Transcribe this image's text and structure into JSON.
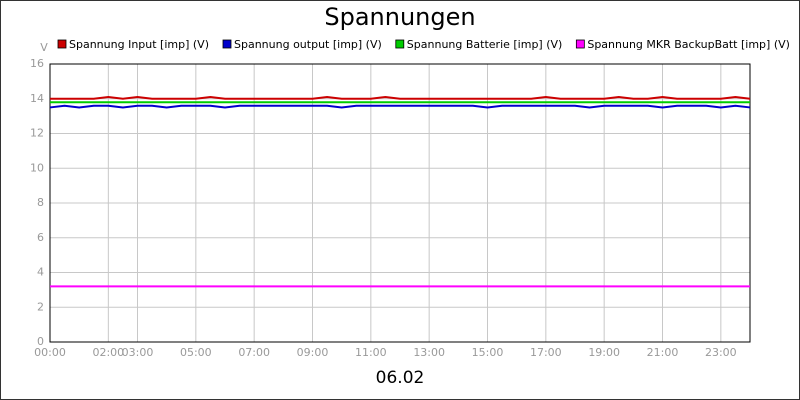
{
  "chart_data": {
    "type": "line",
    "title": "Spannungen",
    "xlabel": "06.02",
    "ylabel": "V",
    "x": [
      0,
      0.5,
      1,
      1.5,
      2,
      2.5,
      3,
      3.5,
      4,
      4.5,
      5,
      5.5,
      6,
      6.5,
      7,
      7.5,
      8,
      8.5,
      9,
      9.5,
      10,
      10.5,
      11,
      11.5,
      12,
      12.5,
      13,
      13.5,
      14,
      14.5,
      15,
      15.5,
      16,
      16.5,
      17,
      17.5,
      18,
      18.5,
      19,
      19.5,
      20,
      20.5,
      21,
      21.5,
      22,
      22.5,
      23,
      23.5,
      24
    ],
    "xlim": [
      0,
      24
    ],
    "xticks": [
      {
        "value": 0,
        "label": "00:00"
      },
      {
        "value": 2,
        "label": "02:00"
      },
      {
        "value": 3,
        "label": "03:00"
      },
      {
        "value": 5,
        "label": "05:00"
      },
      {
        "value": 7,
        "label": "07:00"
      },
      {
        "value": 9,
        "label": "09:00"
      },
      {
        "value": 11,
        "label": "11:00"
      },
      {
        "value": 13,
        "label": "13:00"
      },
      {
        "value": 15,
        "label": "15:00"
      },
      {
        "value": 17,
        "label": "17:00"
      },
      {
        "value": 19,
        "label": "19:00"
      },
      {
        "value": 21,
        "label": "21:00"
      },
      {
        "value": 23,
        "label": "23:00"
      }
    ],
    "ylim": [
      0,
      16
    ],
    "yticks": [
      0,
      2,
      4,
      6,
      8,
      10,
      12,
      14,
      16
    ],
    "grid": true,
    "series": [
      {
        "name": "Spannung Input [imp] (V)",
        "color": "#cc0000",
        "values": [
          14,
          14,
          14,
          14,
          14.1,
          14,
          14.1,
          14,
          14,
          14,
          14,
          14.1,
          14,
          14,
          14,
          14,
          14,
          14,
          14,
          14.1,
          14,
          14,
          14,
          14.1,
          14,
          14,
          14,
          14,
          14,
          14,
          14,
          14,
          14,
          14,
          14.1,
          14,
          14,
          14,
          14,
          14.1,
          14,
          14,
          14.1,
          14,
          14,
          14,
          14,
          14.1,
          14
        ]
      },
      {
        "name": "Spannung output [imp] (V)",
        "color": "#0000cc",
        "values": [
          13.5,
          13.6,
          13.5,
          13.6,
          13.6,
          13.5,
          13.6,
          13.6,
          13.5,
          13.6,
          13.6,
          13.6,
          13.5,
          13.6,
          13.6,
          13.6,
          13.6,
          13.6,
          13.6,
          13.6,
          13.5,
          13.6,
          13.6,
          13.6,
          13.6,
          13.6,
          13.6,
          13.6,
          13.6,
          13.6,
          13.5,
          13.6,
          13.6,
          13.6,
          13.6,
          13.6,
          13.6,
          13.5,
          13.6,
          13.6,
          13.6,
          13.6,
          13.5,
          13.6,
          13.6,
          13.6,
          13.5,
          13.6,
          13.5
        ]
      },
      {
        "name": "Spannung Batterie [imp] (V)",
        "color": "#00cc00",
        "values": [
          13.8,
          13.8,
          13.8,
          13.8,
          13.8,
          13.8,
          13.8,
          13.8,
          13.8,
          13.8,
          13.8,
          13.8,
          13.8,
          13.8,
          13.8,
          13.8,
          13.8,
          13.8,
          13.8,
          13.8,
          13.8,
          13.8,
          13.8,
          13.8,
          13.8,
          13.8,
          13.8,
          13.8,
          13.8,
          13.8,
          13.8,
          13.8,
          13.8,
          13.8,
          13.8,
          13.8,
          13.8,
          13.8,
          13.8,
          13.8,
          13.8,
          13.8,
          13.8,
          13.8,
          13.8,
          13.8,
          13.8,
          13.8,
          13.8
        ]
      },
      {
        "name": "Spannung MKR BackupBatt [imp] (V)",
        "color": "#ff00ff",
        "values": [
          3.2,
          3.2,
          3.2,
          3.2,
          3.2,
          3.2,
          3.2,
          3.2,
          3.2,
          3.2,
          3.2,
          3.2,
          3.2,
          3.2,
          3.2,
          3.2,
          3.2,
          3.2,
          3.2,
          3.2,
          3.2,
          3.2,
          3.2,
          3.2,
          3.2,
          3.2,
          3.2,
          3.2,
          3.2,
          3.2,
          3.2,
          3.2,
          3.2,
          3.2,
          3.2,
          3.2,
          3.2,
          3.2,
          3.2,
          3.2,
          3.2,
          3.2,
          3.2,
          3.2,
          3.2,
          3.2,
          3.2,
          3.2,
          3.2
        ]
      }
    ]
  }
}
